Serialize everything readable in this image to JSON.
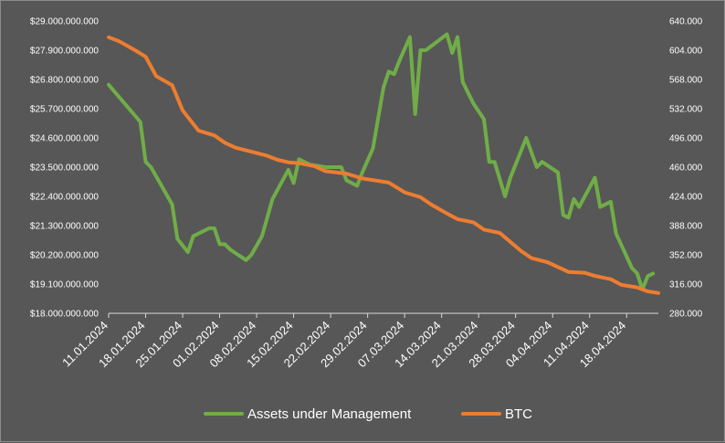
{
  "chart_data": {
    "type": "line",
    "title": "",
    "xlabel": "",
    "ylabel": "",
    "grid": false,
    "legend_position": "bottom",
    "background": "#575757",
    "x_start": "11.01.2024",
    "x_ticks": [
      "11.01.2024",
      "18.01.2024",
      "25.01.2024",
      "01.02.2024",
      "08.02.2024",
      "15.02.2024",
      "22.02.2024",
      "29.02.2024",
      "07.03.2024",
      "14.03.2024",
      "21.03.2024",
      "28.03.2024",
      "04.04.2024",
      "11.04.2024",
      "18.04.2024"
    ],
    "y_left": {
      "min": 18000000000,
      "max": 29000000000,
      "ticks": [
        18000000000,
        19100000000,
        20200000000,
        21300000000,
        22400000000,
        23500000000,
        24600000000,
        25700000000,
        26800000000,
        27900000000,
        29000000000
      ],
      "tick_labels": [
        "$18.000.000.000",
        "$19.100.000.000",
        "$20.200.000.000",
        "$21.300.000.000",
        "$22.400.000.000",
        "$23.500.000.000",
        "$24.600.000.000",
        "$25.700.000.000",
        "$26.800.000.000",
        "$27.900.000.000",
        "$29.000.000.000"
      ]
    },
    "y_right": {
      "min": 280000,
      "max": 640000,
      "ticks": [
        280000,
        316000,
        352000,
        388000,
        424000,
        460000,
        496000,
        532000,
        568000,
        604000,
        640000
      ],
      "tick_labels": [
        "280.000",
        "316.000",
        "352.000",
        "388.000",
        "424.000",
        "460.000",
        "496.000",
        "532.000",
        "568.000",
        "604.000",
        "640.000"
      ]
    },
    "series": [
      {
        "name": "Assets under Management",
        "color": "#70ad47",
        "axis": "left",
        "points": [
          [
            "11.01.2024",
            26600000000
          ],
          [
            "17.01.2024",
            25200000000
          ],
          [
            "18.01.2024",
            23700000000
          ],
          [
            "19.01.2024",
            23500000000
          ],
          [
            "23.01.2024",
            22100000000
          ],
          [
            "24.01.2024",
            20800000000
          ],
          [
            "26.01.2024",
            20300000000
          ],
          [
            "27.01.2024",
            20900000000
          ],
          [
            "30.01.2024",
            21200000000
          ],
          [
            "31.01.2024",
            21200000000
          ],
          [
            "01.02.2024",
            20600000000
          ],
          [
            "02.02.2024",
            20600000000
          ],
          [
            "03.02.2024",
            20400000000
          ],
          [
            "06.02.2024",
            20000000000
          ],
          [
            "07.02.2024",
            20200000000
          ],
          [
            "09.02.2024",
            20900000000
          ],
          [
            "10.02.2024",
            21600000000
          ],
          [
            "11.02.2024",
            22300000000
          ],
          [
            "14.02.2024",
            23400000000
          ],
          [
            "15.02.2024",
            22900000000
          ],
          [
            "16.02.2024",
            23800000000
          ],
          [
            "18.02.2024",
            23600000000
          ],
          [
            "21.02.2024",
            23500000000
          ],
          [
            "24.02.2024",
            23500000000
          ],
          [
            "25.02.2024",
            23000000000
          ],
          [
            "27.02.2024",
            22800000000
          ],
          [
            "28.02.2024",
            23300000000
          ],
          [
            "01.03.2024",
            24200000000
          ],
          [
            "03.03.2024",
            26500000000
          ],
          [
            "04.03.2024",
            27100000000
          ],
          [
            "05.03.2024",
            27000000000
          ],
          [
            "06.03.2024",
            27500000000
          ],
          [
            "08.03.2024",
            28400000000
          ],
          [
            "09.03.2024",
            25500000000
          ],
          [
            "10.03.2024",
            27900000000
          ],
          [
            "11.03.2024",
            27900000000
          ],
          [
            "15.03.2024",
            28500000000
          ],
          [
            "16.03.2024",
            27800000000
          ],
          [
            "17.03.2024",
            28400000000
          ],
          [
            "18.03.2024",
            26700000000
          ],
          [
            "20.03.2024",
            25900000000
          ],
          [
            "22.03.2024",
            25300000000
          ],
          [
            "23.03.2024",
            23700000000
          ],
          [
            "24.03.2024",
            23700000000
          ],
          [
            "26.03.2024",
            22400000000
          ],
          [
            "27.03.2024",
            23100000000
          ],
          [
            "30.03.2024",
            24600000000
          ],
          [
            "01.04.2024",
            23500000000
          ],
          [
            "02.04.2024",
            23700000000
          ],
          [
            "05.04.2024",
            23300000000
          ],
          [
            "06.04.2024",
            21700000000
          ],
          [
            "07.04.2024",
            21600000000
          ],
          [
            "08.04.2024",
            22300000000
          ],
          [
            "09.04.2024",
            22000000000
          ],
          [
            "12.04.2024",
            23100000000
          ],
          [
            "13.04.2024",
            22000000000
          ],
          [
            "15.04.2024",
            22200000000
          ],
          [
            "16.04.2024",
            21000000000
          ],
          [
            "19.04.2024",
            19700000000
          ],
          [
            "20.04.2024",
            19500000000
          ],
          [
            "21.04.2024",
            18900000000
          ],
          [
            "22.04.2024",
            19400000000
          ],
          [
            "23.04.2024",
            19500000000
          ]
        ]
      },
      {
        "name": "BTC",
        "color": "#ed7d31",
        "axis": "right",
        "points": [
          [
            "11.01.2024",
            620000
          ],
          [
            "13.01.2024",
            615000
          ],
          [
            "16.01.2024",
            604000
          ],
          [
            "18.01.2024",
            596000
          ],
          [
            "20.01.2024",
            572000
          ],
          [
            "23.01.2024",
            561000
          ],
          [
            "25.01.2024",
            530000
          ],
          [
            "28.01.2024",
            505000
          ],
          [
            "31.01.2024",
            499000
          ],
          [
            "02.02.2024",
            490000
          ],
          [
            "04.02.2024",
            484000
          ],
          [
            "07.02.2024",
            479000
          ],
          [
            "10.02.2024",
            474000
          ],
          [
            "12.02.2024",
            469000
          ],
          [
            "14.02.2024",
            466000
          ],
          [
            "16.02.2024",
            465000
          ],
          [
            "19.02.2024",
            461000
          ],
          [
            "21.02.2024",
            455000
          ],
          [
            "25.02.2024",
            452000
          ],
          [
            "28.02.2024",
            446000
          ],
          [
            "01.03.2024",
            444000
          ],
          [
            "04.03.2024",
            441000
          ],
          [
            "07.03.2024",
            429000
          ],
          [
            "10.03.2024",
            423000
          ],
          [
            "12.03.2024",
            414000
          ],
          [
            "15.03.2024",
            403000
          ],
          [
            "17.03.2024",
            396000
          ],
          [
            "20.03.2024",
            392000
          ],
          [
            "22.03.2024",
            383000
          ],
          [
            "25.03.2024",
            379000
          ],
          [
            "29.03.2024",
            357000
          ],
          [
            "31.03.2024",
            348000
          ],
          [
            "03.04.2024",
            343000
          ],
          [
            "07.04.2024",
            331000
          ],
          [
            "10.04.2024",
            330000
          ],
          [
            "12.04.2024",
            326000
          ],
          [
            "15.04.2024",
            322000
          ],
          [
            "17.04.2024",
            315000
          ],
          [
            "20.04.2024",
            312000
          ],
          [
            "22.04.2024",
            307000
          ],
          [
            "24.04.2024",
            305000
          ]
        ]
      }
    ]
  }
}
